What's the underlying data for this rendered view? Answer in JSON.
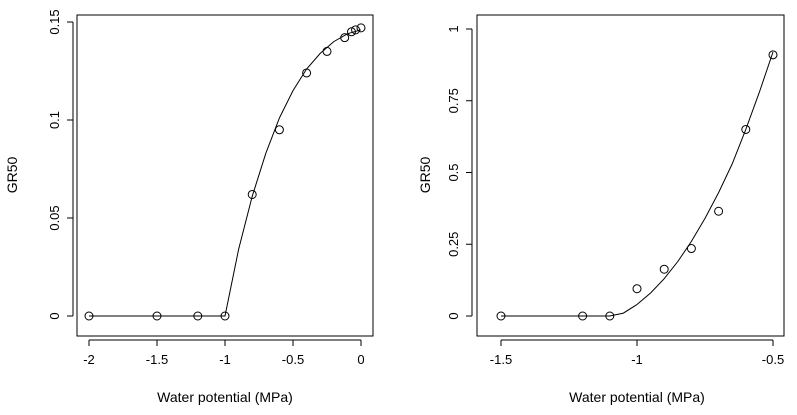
{
  "chart_data": [
    {
      "type": "scatter",
      "xlabel": "Water potential (MPa)",
      "ylabel": "GR50",
      "xlim": [
        -2.0,
        0.0
      ],
      "ylim": [
        0.0,
        0.15
      ],
      "xticks": [
        -2,
        -1.5,
        -1,
        -0.5,
        0
      ],
      "xtick_labels": [
        "-2",
        "-1.5",
        "-1",
        "-0.5",
        "0"
      ],
      "yticks": [
        0,
        0.05,
        0.1,
        0.15
      ],
      "ytick_labels": [
        "0",
        "0.05",
        "0.1",
        "0.15"
      ],
      "points": {
        "x": [
          -2.0,
          -1.5,
          -1.2,
          -1.0,
          -0.8,
          -0.6,
          -0.4,
          -0.25,
          -0.12,
          -0.07,
          -0.04,
          0.0
        ],
        "y": [
          0.0,
          0.0,
          0.0,
          0.0,
          0.062,
          0.095,
          0.124,
          0.135,
          0.142,
          0.145,
          0.146,
          0.147
        ]
      },
      "fit_line": {
        "x": [
          -2.0,
          -1.0,
          -0.9,
          -0.8,
          -0.7,
          -0.6,
          -0.5,
          -0.4,
          -0.3,
          -0.2,
          -0.1,
          0.0
        ],
        "y": [
          0.0,
          0.0,
          0.034,
          0.061,
          0.083,
          0.101,
          0.115,
          0.126,
          0.134,
          0.14,
          0.144,
          0.146
        ]
      },
      "grid": false
    },
    {
      "type": "scatter",
      "xlabel": "Water potential (MPa)",
      "ylabel": "GR50",
      "xlim": [
        -1.5,
        -0.5
      ],
      "ylim": [
        0.0,
        1.0
      ],
      "xticks": [
        -1.5,
        -1,
        -0.5
      ],
      "xtick_labels": [
        "-1.5",
        "-1",
        "-0.5"
      ],
      "yticks": [
        0,
        0.25,
        0.5,
        0.75,
        1
      ],
      "ytick_labels": [
        "0",
        "0.25",
        "0.5",
        "0.75",
        "1"
      ],
      "points": {
        "x": [
          -1.5,
          -1.2,
          -1.1,
          -1.0,
          -0.9,
          -0.8,
          -0.7,
          -0.6,
          -0.5
        ],
        "y": [
          0.0,
          0.0,
          0.0,
          0.095,
          0.163,
          0.235,
          0.365,
          0.65,
          0.91
        ]
      },
      "fit_line": {
        "x": [
          -1.5,
          -1.1,
          -1.05,
          -1.0,
          -0.95,
          -0.9,
          -0.85,
          -0.8,
          -0.75,
          -0.7,
          -0.65,
          -0.6,
          -0.55,
          -0.5
        ],
        "y": [
          0.0,
          0.0,
          0.01,
          0.04,
          0.08,
          0.13,
          0.19,
          0.26,
          0.34,
          0.43,
          0.53,
          0.65,
          0.78,
          0.92
        ]
      },
      "grid": false
    }
  ]
}
